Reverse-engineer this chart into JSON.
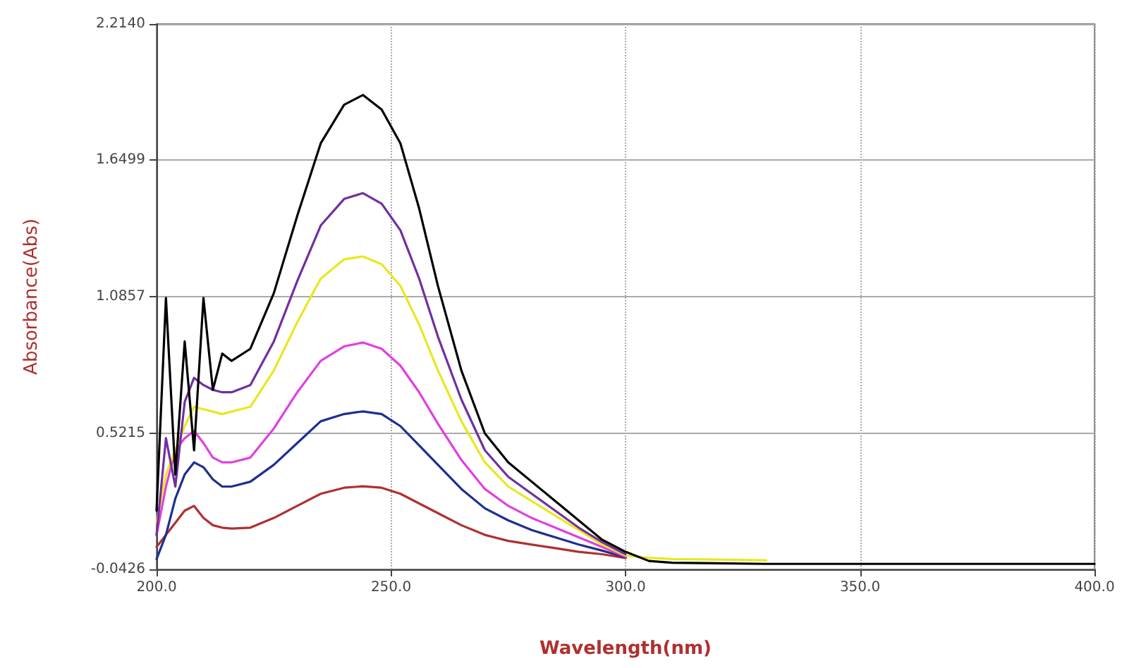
{
  "chart_data": {
    "type": "line",
    "xlabel": "Wavelength(nm)",
    "ylabel": "Absorbance(Abs)",
    "x": [
      200,
      202,
      204,
      206,
      208,
      210,
      212,
      214,
      216,
      220,
      225,
      230,
      235,
      240,
      244,
      248,
      252,
      256,
      260,
      265,
      270,
      275,
      280,
      285,
      290,
      295,
      300,
      305,
      310,
      330,
      350,
      370,
      390,
      400
    ],
    "series": [
      {
        "color": "#b03030",
        "values": [
          0.05,
          0.1,
          0.15,
          0.2,
          0.22,
          0.17,
          0.14,
          0.13,
          0.126,
          0.13,
          0.17,
          0.22,
          0.27,
          0.295,
          0.301,
          0.295,
          0.27,
          0.23,
          0.19,
          0.14,
          0.1,
          0.075,
          0.06,
          0.045,
          0.03,
          0.02,
          0.004,
          null,
          null,
          null,
          null,
          null,
          null,
          null
        ]
      },
      {
        "color": "#1f2f8f",
        "values": [
          0.0,
          0.1,
          0.25,
          0.35,
          0.4,
          0.38,
          0.33,
          0.3,
          0.3,
          0.32,
          0.39,
          0.48,
          0.57,
          0.6,
          0.611,
          0.6,
          0.55,
          0.47,
          0.39,
          0.29,
          0.21,
          0.16,
          0.12,
          0.09,
          0.06,
          0.035,
          0.007,
          null,
          null,
          null,
          null,
          null,
          null,
          null
        ]
      },
      {
        "color": "#e040e0",
        "values": [
          0.1,
          0.3,
          0.45,
          0.5,
          0.53,
          0.48,
          0.42,
          0.4,
          0.4,
          0.42,
          0.54,
          0.69,
          0.82,
          0.88,
          0.896,
          0.87,
          0.8,
          0.69,
          0.56,
          0.41,
          0.29,
          0.22,
          0.17,
          0.13,
          0.09,
          0.05,
          0.01,
          null,
          null,
          null,
          null,
          null,
          null,
          null
        ]
      },
      {
        "color": "#e8e820",
        "values": [
          0.15,
          0.35,
          0.45,
          0.55,
          0.63,
          0.62,
          0.61,
          0.6,
          0.61,
          0.63,
          0.78,
          0.98,
          1.16,
          1.24,
          1.252,
          1.22,
          1.13,
          0.97,
          0.78,
          0.57,
          0.4,
          0.3,
          0.24,
          0.18,
          0.12,
          0.06,
          0.015,
          0.005,
          0.0,
          -0.005,
          null,
          null,
          null,
          null
        ]
      },
      {
        "color": "#7030a0",
        "values": [
          0.1,
          0.5,
          0.3,
          0.65,
          0.75,
          0.72,
          0.7,
          0.69,
          0.69,
          0.72,
          0.9,
          1.15,
          1.38,
          1.49,
          1.514,
          1.47,
          1.36,
          1.16,
          0.92,
          0.66,
          0.45,
          0.34,
          0.27,
          0.2,
          0.13,
          0.07,
          0.02,
          null,
          null,
          null,
          null,
          null,
          null,
          null
        ]
      },
      {
        "color": "#000000",
        "values": [
          0.2,
          1.08,
          0.35,
          0.9,
          0.45,
          1.08,
          0.7,
          0.85,
          0.82,
          0.87,
          1.1,
          1.42,
          1.72,
          1.88,
          1.92,
          1.86,
          1.72,
          1.45,
          1.13,
          0.78,
          0.52,
          0.4,
          0.32,
          0.24,
          0.16,
          0.08,
          0.03,
          -0.008,
          -0.015,
          -0.02,
          -0.02,
          -0.02,
          -0.02,
          -0.02
        ]
      }
    ],
    "xlim": [
      200,
      400
    ],
    "xticks": [
      {
        "value": 200,
        "label": "200.0"
      },
      {
        "value": 250,
        "label": "250.0"
      },
      {
        "value": 300,
        "label": "300.0"
      },
      {
        "value": 350,
        "label": "350.0"
      },
      {
        "value": 400,
        "label": "400.0"
      }
    ],
    "ylim": [
      -0.0426,
      2.214
    ],
    "yticks": [
      {
        "value": -0.0426,
        "label": "-0.0426"
      },
      {
        "value": 0.5215,
        "label": "0.5215"
      },
      {
        "value": 1.0857,
        "label": "1.0857"
      },
      {
        "value": 1.6499,
        "label": "1.6499"
      },
      {
        "value": 2.214,
        "label": "2.2140"
      }
    ],
    "grid": true,
    "marker": "none",
    "line_style": "solid"
  }
}
